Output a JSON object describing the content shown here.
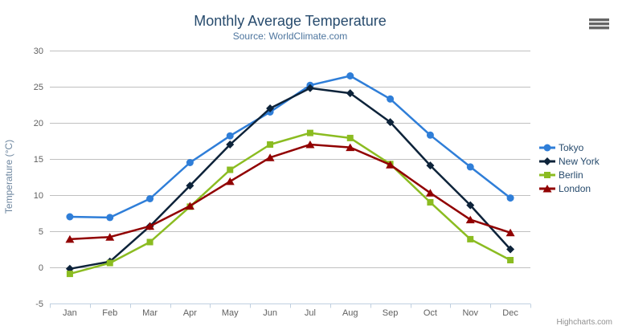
{
  "header": {
    "title": "Monthly Average Temperature",
    "subtitle": "Source: WorldClimate.com"
  },
  "credits": {
    "label": "Highcharts.com"
  },
  "export_button": {
    "icon": "hamburger-menu-icon"
  },
  "colors": {
    "title_text": "#274b6d",
    "subtitle_text": "#4d759e",
    "y_axis_title_text": "#6d869f",
    "axis_label_text": "#606060",
    "gridline": "#c0c0c0",
    "axis_line": "#c0d0e0",
    "tick": "#c0d0e0",
    "legend_text": "#274b6d",
    "credits_text": "#909090",
    "export_icon": "#666666",
    "background": "#ffffff"
  },
  "chart_data": {
    "type": "line",
    "title": "Monthly Average Temperature",
    "subtitle": "Source: WorldClimate.com",
    "categories": [
      "Jan",
      "Feb",
      "Mar",
      "Apr",
      "May",
      "Jun",
      "Jul",
      "Aug",
      "Sep",
      "Oct",
      "Nov",
      "Dec"
    ],
    "xlabel": "",
    "ylabel": "Temperature (°C)",
    "ylim": [
      -5,
      30
    ],
    "yticks": [
      -5,
      0,
      5,
      10,
      15,
      20,
      25,
      30
    ],
    "grid": "horizontal-only",
    "legend_position": "right-middle",
    "series": [
      {
        "name": "Tokyo",
        "color": "#2f7ed8",
        "marker": "circle",
        "values": [
          7.0,
          6.9,
          9.5,
          14.5,
          18.2,
          21.5,
          25.2,
          26.5,
          23.3,
          18.3,
          13.9,
          9.6
        ]
      },
      {
        "name": "New York",
        "color": "#0d233a",
        "marker": "diamond",
        "values": [
          -0.2,
          0.8,
          5.7,
          11.3,
          17.0,
          22.0,
          24.8,
          24.1,
          20.1,
          14.1,
          8.6,
          2.5
        ]
      },
      {
        "name": "Berlin",
        "color": "#8bbc21",
        "marker": "square",
        "values": [
          -0.9,
          0.6,
          3.5,
          8.4,
          13.5,
          17.0,
          18.6,
          17.9,
          14.3,
          9.0,
          3.9,
          1.0
        ]
      },
      {
        "name": "London",
        "color": "#910000",
        "marker": "triangle",
        "values": [
          3.9,
          4.2,
          5.7,
          8.5,
          11.9,
          15.2,
          17.0,
          16.6,
          14.2,
          10.3,
          6.6,
          4.8
        ]
      }
    ]
  }
}
